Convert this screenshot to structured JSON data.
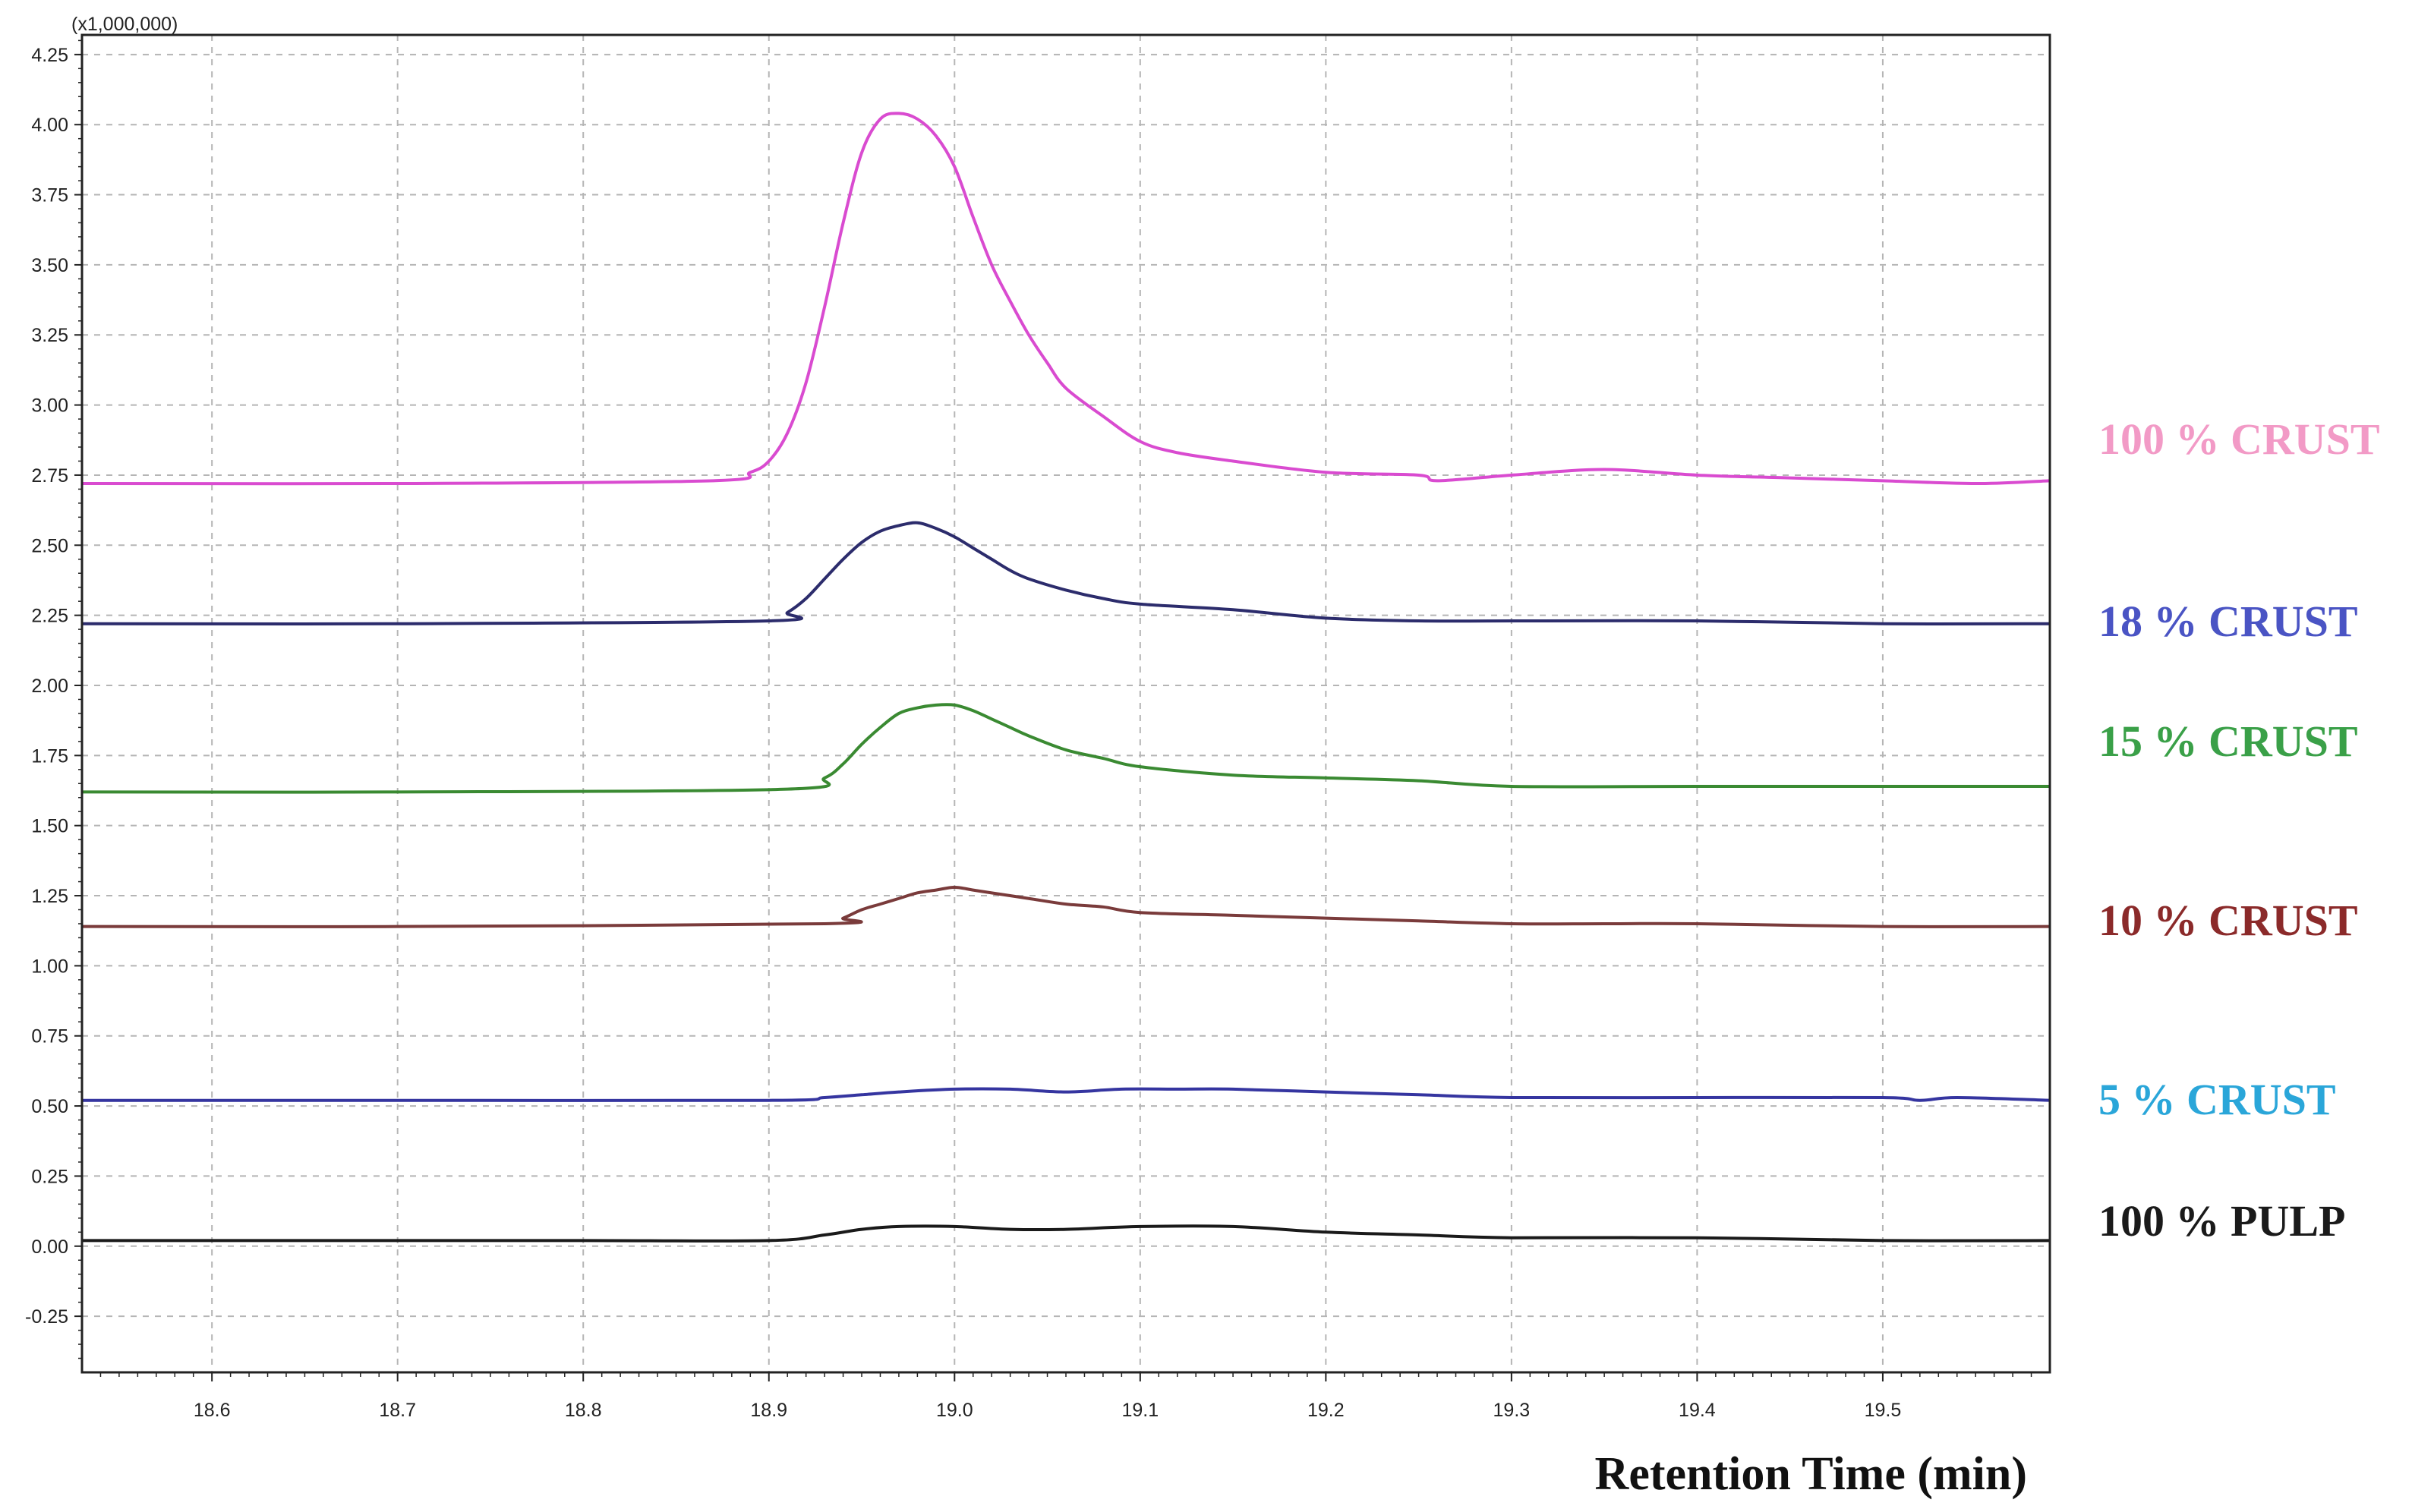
{
  "chart_data": {
    "type": "line",
    "title": "",
    "xlabel": "Retention Time (min)",
    "ylabel": "",
    "y_scale_label": "(x1,000,000)",
    "xlim": [
      18.53,
      19.59
    ],
    "ylim": [
      -0.45,
      4.32
    ],
    "x_ticks": [
      18.6,
      18.7,
      18.8,
      18.9,
      19.0,
      19.1,
      19.2,
      19.3,
      19.4,
      19.5
    ],
    "x_tick_labels": [
      "18.6",
      "18.7",
      "18.8",
      "18.9",
      "19.0",
      "19.1",
      "19.2",
      "19.3",
      "19.4",
      "19.5"
    ],
    "y_ticks": [
      -0.25,
      0.0,
      0.25,
      0.5,
      0.75,
      1.0,
      1.25,
      1.5,
      1.75,
      2.0,
      2.25,
      2.5,
      2.75,
      3.0,
      3.25,
      3.5,
      3.75,
      4.0,
      4.25
    ],
    "y_tick_labels": [
      "-0.25",
      "0.00",
      "0.25",
      "0.50",
      "0.75",
      "1.00",
      "1.25",
      "1.50",
      "1.75",
      "2.00",
      "2.25",
      "2.50",
      "2.75",
      "3.00",
      "3.25",
      "3.50",
      "3.75",
      "4.00",
      "4.25"
    ],
    "grid": true,
    "series": [
      {
        "name": "100 % CRUST",
        "color": "#d94bd0",
        "label_color": "#f29ac6",
        "x": [
          18.53,
          18.7,
          18.87,
          18.89,
          18.9,
          18.91,
          18.92,
          18.93,
          18.94,
          18.95,
          18.96,
          18.97,
          18.98,
          18.99,
          19.0,
          19.01,
          19.02,
          19.03,
          19.04,
          19.05,
          19.06,
          19.08,
          19.1,
          19.12,
          19.15,
          19.2,
          19.25,
          19.26,
          19.3,
          19.35,
          19.4,
          19.45,
          19.5,
          19.55,
          19.59
        ],
        "y": [
          2.72,
          2.72,
          2.73,
          2.76,
          2.8,
          2.9,
          3.08,
          3.35,
          3.65,
          3.9,
          4.02,
          4.04,
          4.02,
          3.96,
          3.85,
          3.67,
          3.5,
          3.37,
          3.25,
          3.15,
          3.06,
          2.96,
          2.87,
          2.83,
          2.8,
          2.76,
          2.75,
          2.73,
          2.75,
          2.77,
          2.75,
          2.74,
          2.73,
          2.72,
          2.73
        ]
      },
      {
        "name": "18 % CRUST",
        "color": "#2c2c6c",
        "label_color": "#4a54c4",
        "x": [
          18.53,
          18.7,
          18.9,
          18.91,
          18.92,
          18.93,
          18.94,
          18.95,
          18.96,
          18.97,
          18.98,
          18.99,
          19.0,
          19.01,
          19.02,
          19.03,
          19.04,
          19.06,
          19.08,
          19.1,
          19.15,
          19.2,
          19.25,
          19.3,
          19.4,
          19.5,
          19.59
        ],
        "y": [
          2.22,
          2.22,
          2.23,
          2.26,
          2.31,
          2.38,
          2.45,
          2.51,
          2.55,
          2.57,
          2.58,
          2.56,
          2.53,
          2.49,
          2.45,
          2.41,
          2.38,
          2.34,
          2.31,
          2.29,
          2.27,
          2.24,
          2.23,
          2.23,
          2.23,
          2.22,
          2.22
        ]
      },
      {
        "name": "15 % CRUST",
        "color": "#3a8a32",
        "label_color": "#3aa048",
        "x": [
          18.53,
          18.7,
          18.91,
          18.93,
          18.94,
          18.95,
          18.96,
          18.97,
          18.98,
          18.99,
          19.0,
          19.01,
          19.02,
          19.03,
          19.04,
          19.06,
          19.08,
          19.1,
          19.15,
          19.2,
          19.25,
          19.3,
          19.4,
          19.5,
          19.59
        ],
        "y": [
          1.62,
          1.62,
          1.63,
          1.67,
          1.72,
          1.79,
          1.85,
          1.9,
          1.92,
          1.93,
          1.93,
          1.91,
          1.88,
          1.85,
          1.82,
          1.77,
          1.74,
          1.71,
          1.68,
          1.67,
          1.66,
          1.64,
          1.64,
          1.64,
          1.64
        ]
      },
      {
        "name": "10 % CRUST",
        "color": "#7a3b3b",
        "label_color": "#8b2a2a",
        "x": [
          18.53,
          18.7,
          18.93,
          18.94,
          18.95,
          18.96,
          18.97,
          18.98,
          18.99,
          19.0,
          19.01,
          19.02,
          19.04,
          19.06,
          19.08,
          19.1,
          19.15,
          19.2,
          19.25,
          19.3,
          19.35,
          19.4,
          19.5,
          19.59
        ],
        "y": [
          1.14,
          1.14,
          1.15,
          1.17,
          1.2,
          1.22,
          1.24,
          1.26,
          1.27,
          1.28,
          1.27,
          1.26,
          1.24,
          1.22,
          1.21,
          1.19,
          1.18,
          1.17,
          1.16,
          1.15,
          1.15,
          1.15,
          1.14,
          1.14
        ]
      },
      {
        "name": "5 % CRUST",
        "color": "#3535a0",
        "label_color": "#2aa6d9",
        "x": [
          18.53,
          18.7,
          18.9,
          18.93,
          18.95,
          18.97,
          19.0,
          19.03,
          19.06,
          19.09,
          19.12,
          19.15,
          19.2,
          19.25,
          19.3,
          19.4,
          19.5,
          19.52,
          19.54,
          19.59
        ],
        "y": [
          0.52,
          0.52,
          0.52,
          0.53,
          0.54,
          0.55,
          0.56,
          0.56,
          0.55,
          0.56,
          0.56,
          0.56,
          0.55,
          0.54,
          0.53,
          0.53,
          0.53,
          0.52,
          0.53,
          0.52
        ]
      },
      {
        "name": "100 % PULP",
        "color": "#1a1a1a",
        "label_color": "#1a1a1a",
        "x": [
          18.53,
          18.6,
          18.7,
          18.8,
          18.9,
          18.93,
          18.95,
          18.97,
          19.0,
          19.03,
          19.06,
          19.1,
          19.15,
          19.2,
          19.25,
          19.3,
          19.4,
          19.5,
          19.59
        ],
        "y": [
          0.02,
          0.02,
          0.02,
          0.02,
          0.02,
          0.04,
          0.06,
          0.07,
          0.07,
          0.06,
          0.06,
          0.07,
          0.07,
          0.05,
          0.04,
          0.03,
          0.03,
          0.02,
          0.02
        ]
      }
    ]
  }
}
